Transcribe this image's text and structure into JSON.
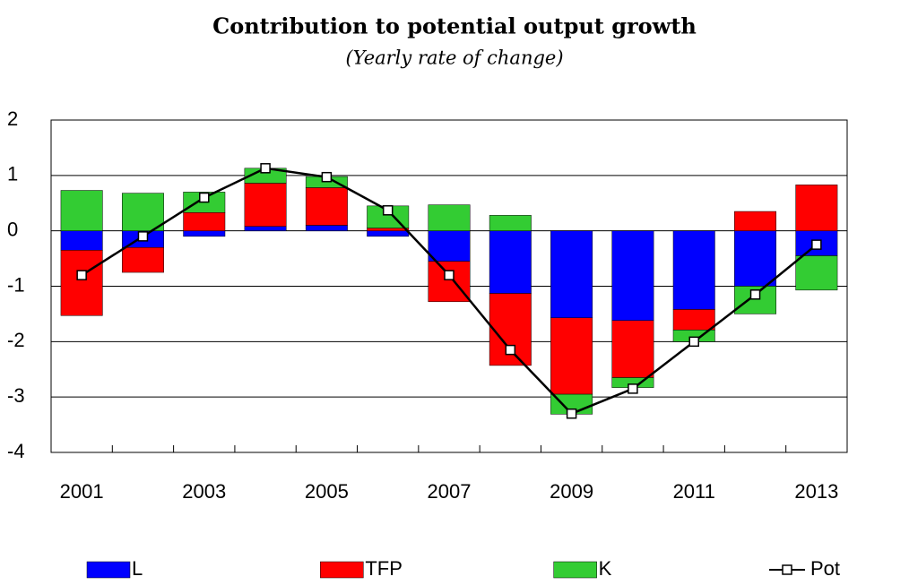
{
  "chart_data": {
    "type": "bar",
    "stacked": true,
    "title": "Contribution to potential output growth",
    "subtitle": "(Yearly rate of change)",
    "categories": [
      "2001",
      null,
      "2003",
      null,
      "2005",
      null,
      "2007",
      null,
      "2009",
      null,
      "2011",
      null,
      "2013"
    ],
    "series": [
      {
        "name": "L",
        "color": "#0000ff",
        "values": [
          -0.35,
          -0.3,
          -0.1,
          0.08,
          0.1,
          -0.1,
          -0.55,
          -1.13,
          -1.57,
          -1.62,
          -1.42,
          -1.0,
          -0.45
        ]
      },
      {
        "name": "TFP",
        "color": "#ff0000",
        "values": [
          -1.18,
          -0.45,
          0.33,
          0.78,
          0.68,
          0.05,
          -0.73,
          -1.3,
          -1.38,
          -1.03,
          -0.37,
          0.35,
          0.83
        ]
      },
      {
        "name": "K",
        "color": "#33cc33",
        "values": [
          0.73,
          0.68,
          0.37,
          0.27,
          0.2,
          0.4,
          0.47,
          0.28,
          -0.36,
          -0.18,
          -0.21,
          -0.5,
          -0.62
        ]
      },
      {
        "name": "Pot",
        "type": "line",
        "color": "#000000",
        "values": [
          -0.8,
          -0.1,
          0.6,
          1.13,
          0.97,
          0.37,
          -0.8,
          -2.15,
          -3.3,
          -2.85,
          -2.0,
          -1.15,
          -0.25
        ]
      }
    ],
    "ylim": [
      -4,
      2
    ],
    "yticks": [
      -4,
      -3,
      -2,
      -1,
      0,
      1,
      2
    ],
    "grid": true,
    "legend": "bottom"
  }
}
